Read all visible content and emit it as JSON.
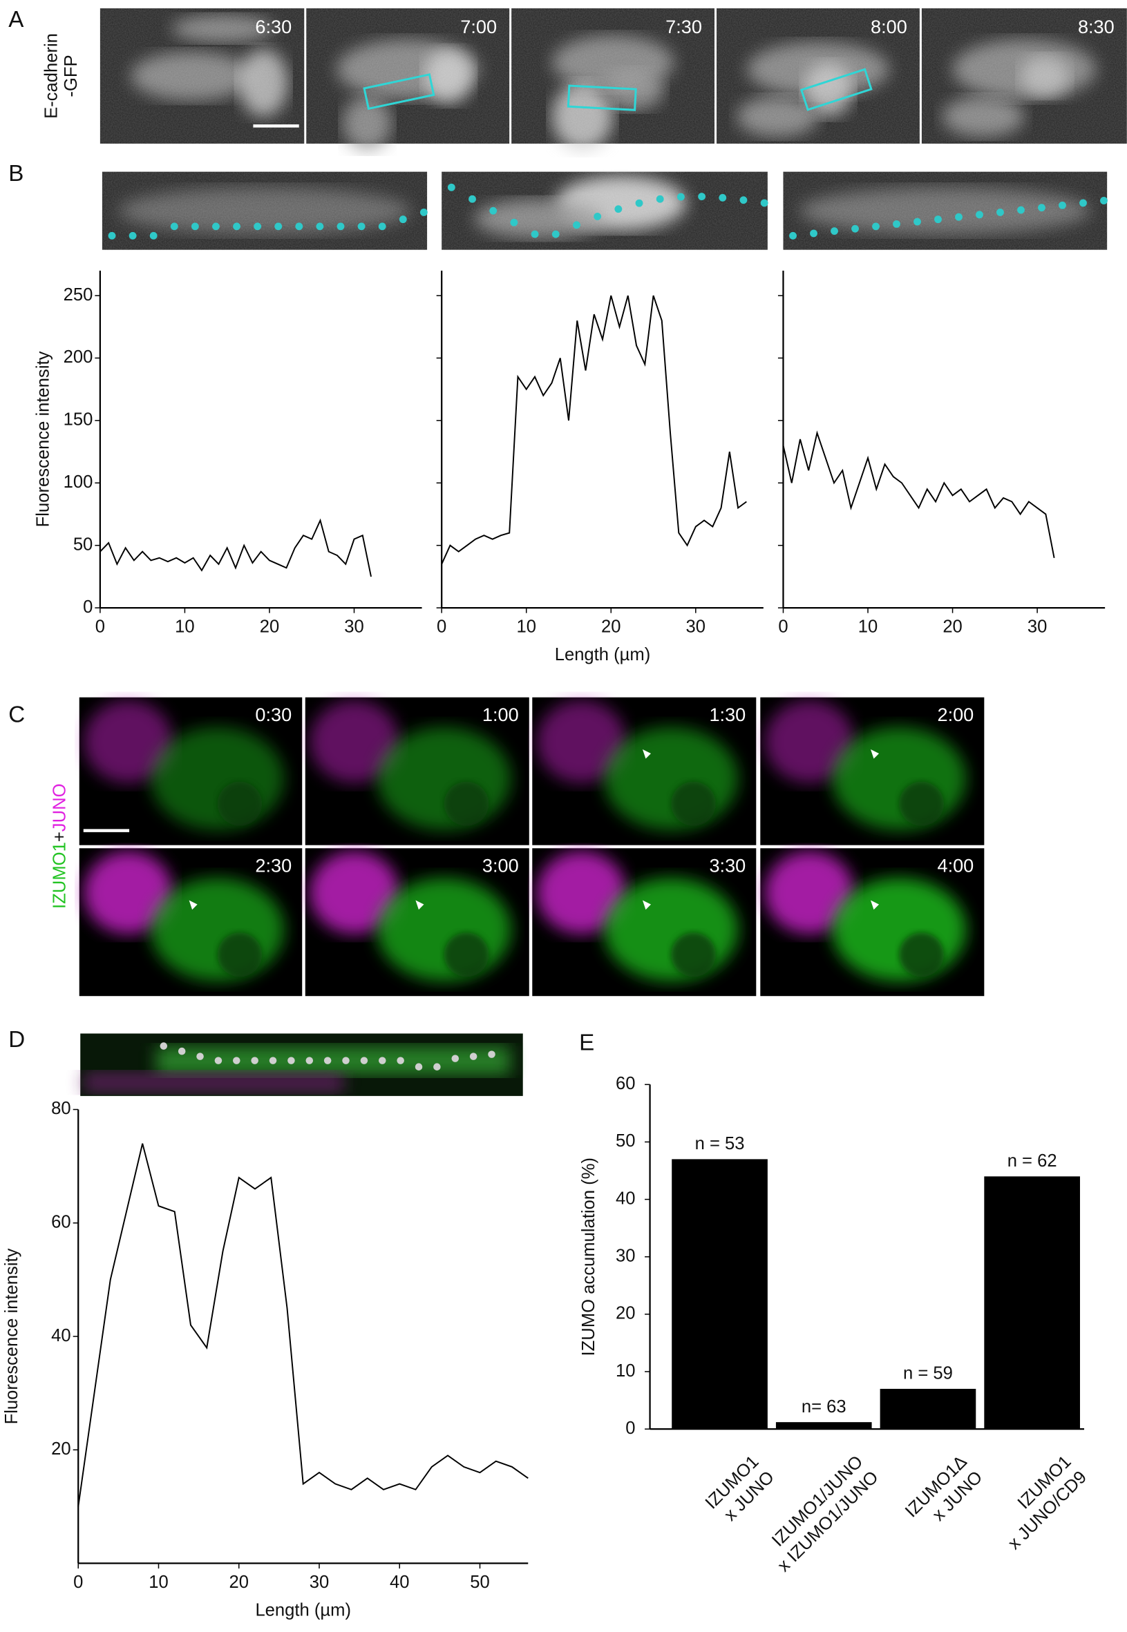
{
  "panel_labels": [
    "A",
    "B",
    "C",
    "D",
    "E"
  ],
  "panel_a": {
    "label": [
      "E-cadherin",
      "-GFP"
    ],
    "times": [
      "6:30",
      "7:00",
      "7:30",
      "8:00",
      "8:30"
    ]
  },
  "panel_c": {
    "label": [
      "IZUMO1",
      "+",
      "JUNO"
    ],
    "times": [
      "0:30",
      "1:00",
      "1:30",
      "2:00",
      "2:30",
      "3:00",
      "3:30",
      "4:00"
    ]
  },
  "chart_data": [
    {
      "type": "line",
      "ylabel": "Fluorescence intensity",
      "color": "#000000",
      "x": [
        0,
        1,
        2,
        3,
        4,
        5,
        6,
        7,
        8,
        9,
        10,
        11,
        12,
        13,
        14,
        15,
        16,
        17,
        18,
        19,
        20,
        21,
        22,
        23,
        24,
        25,
        26,
        27,
        28,
        29,
        30,
        31,
        32
      ],
      "values": [
        45,
        52,
        35,
        48,
        38,
        45,
        38,
        40,
        37,
        40,
        36,
        40,
        30,
        42,
        35,
        48,
        32,
        50,
        36,
        45,
        38,
        35,
        32,
        48,
        58,
        55,
        70,
        45,
        42,
        35,
        55,
        58,
        25
      ],
      "xlim": [
        0,
        38
      ],
      "ylim": [
        0,
        270
      ],
      "xticks": [
        0,
        10,
        20,
        30
      ],
      "yticks": [
        0,
        50,
        100,
        150,
        200,
        250
      ]
    },
    {
      "type": "line",
      "xlabel": "Length (µm)",
      "color": "#000000",
      "ytick_labels": false,
      "x": [
        0,
        1,
        2,
        3,
        4,
        5,
        6,
        7,
        8,
        9,
        10,
        11,
        12,
        13,
        14,
        15,
        16,
        17,
        18,
        19,
        20,
        21,
        22,
        23,
        24,
        25,
        26,
        27,
        28,
        29,
        30,
        31,
        32,
        33,
        34,
        35,
        36
      ],
      "values": [
        35,
        50,
        45,
        50,
        55,
        58,
        55,
        58,
        60,
        185,
        175,
        185,
        170,
        180,
        200,
        150,
        230,
        190,
        235,
        215,
        250,
        225,
        250,
        210,
        195,
        250,
        230,
        140,
        60,
        50,
        65,
        70,
        65,
        80,
        125,
        80,
        85
      ],
      "xlim": [
        0,
        38
      ],
      "ylim": [
        0,
        270
      ],
      "xticks": [
        0,
        10,
        20,
        30
      ],
      "yticks": [
        0,
        50,
        100,
        150,
        200,
        250
      ]
    },
    {
      "type": "line",
      "color": "#000000",
      "ytick_labels": false,
      "x": [
        0,
        1,
        2,
        3,
        4,
        5,
        6,
        7,
        8,
        9,
        10,
        11,
        12,
        13,
        14,
        15,
        16,
        17,
        18,
        19,
        20,
        21,
        22,
        23,
        24,
        25,
        26,
        27,
        28,
        29,
        30,
        31,
        32
      ],
      "values": [
        130,
        100,
        135,
        110,
        140,
        120,
        100,
        110,
        80,
        100,
        120,
        95,
        115,
        105,
        100,
        90,
        80,
        95,
        85,
        100,
        90,
        95,
        85,
        90,
        95,
        80,
        88,
        85,
        75,
        85,
        80,
        75,
        40
      ],
      "xlim": [
        0,
        38
      ],
      "ylim": [
        0,
        270
      ],
      "xticks": [
        0,
        10,
        20,
        30
      ],
      "yticks": [
        0,
        50,
        100,
        150,
        200,
        250
      ]
    },
    {
      "type": "line",
      "ylabel": "Fluorescence intensity",
      "xlabel": "Length (µm)",
      "color": "#000000",
      "x": [
        0,
        2,
        4,
        6,
        8,
        10,
        12,
        14,
        16,
        18,
        20,
        22,
        24,
        26,
        28,
        30,
        32,
        34,
        36,
        38,
        40,
        42,
        44,
        46,
        48,
        50,
        52,
        54,
        56
      ],
      "values": [
        10,
        30,
        50,
        62,
        74,
        63,
        62,
        42,
        38,
        55,
        68,
        66,
        68,
        45,
        14,
        16,
        14,
        13,
        15,
        13,
        14,
        13,
        17,
        19,
        17,
        16,
        18,
        17,
        15
      ],
      "xlim": [
        0,
        56
      ],
      "ylim": [
        0,
        80
      ],
      "xticks": [
        0,
        10,
        20,
        30,
        40,
        50
      ],
      "yticks": [
        20,
        40,
        60,
        80
      ]
    },
    {
      "type": "bar",
      "ylabel": "IZUMO accumulation (%)",
      "color": "#000000",
      "categories": [
        [
          "IZUMO1",
          "x JUNO"
        ],
        [
          "IZUMO1/JUNO",
          "x IZUMO1/JUNO"
        ],
        [
          "IZUMO1Δ",
          "x JUNO"
        ],
        [
          "IZUMO1",
          "x JUNO/CD9"
        ]
      ],
      "values": [
        47,
        1.2,
        7,
        44
      ],
      "annotations": [
        "n = 53",
        "n= 63",
        "n = 59",
        "n = 62"
      ],
      "ylim": [
        0,
        60
      ],
      "yticks": [
        0,
        10,
        20,
        30,
        40,
        50,
        60
      ]
    }
  ]
}
